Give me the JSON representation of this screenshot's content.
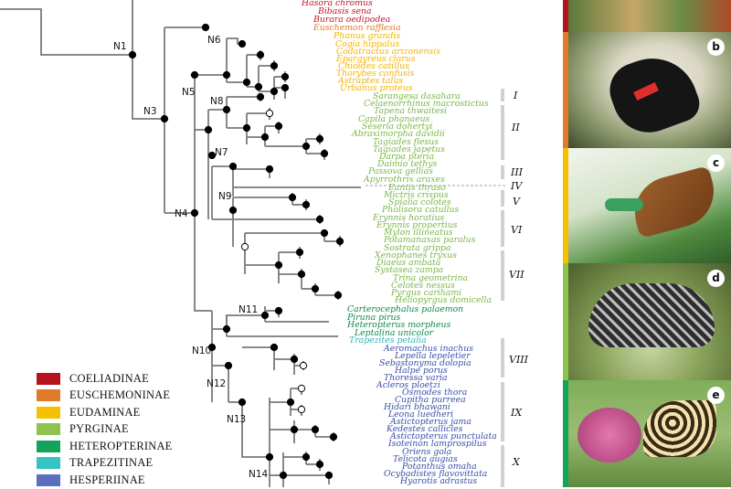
{
  "nodes": {
    "N1": "N1",
    "N3": "N3",
    "N4": "N4",
    "N5": "N5",
    "N6": "N6",
    "N7": "N7",
    "N8": "N8",
    "N9": "N9",
    "N10": "N10",
    "N11": "N11",
    "N12": "N12",
    "N13": "N13",
    "N14": "N14"
  },
  "taxa": [
    {
      "name": "Hasora chromus",
      "color": "#c0152a"
    },
    {
      "name": "Bibasis sena",
      "color": "#c0152a"
    },
    {
      "name": "Burara oedipodea",
      "color": "#c0152a"
    },
    {
      "name": "Euschemon rafflesia",
      "color": "#e07b2a"
    },
    {
      "name": "Phanus grandis",
      "color": "#f3b200"
    },
    {
      "name": "Cogia hippalus",
      "color": "#f3b200"
    },
    {
      "name": "Codatractus arizonensis",
      "color": "#f3b200"
    },
    {
      "name": "Epargyreus clarus",
      "color": "#f3b200"
    },
    {
      "name": "Chioides catillus",
      "color": "#f3b200"
    },
    {
      "name": "Thorybes confusis",
      "color": "#f3b200"
    },
    {
      "name": "Astraptes talus",
      "color": "#f3b200"
    },
    {
      "name": "Urbanus proteus",
      "color": "#f3b200"
    },
    {
      "name": "Sarangesa dasahara",
      "color": "#7ab648"
    },
    {
      "name": "Celaenorrhinus macrostictus",
      "color": "#7ab648"
    },
    {
      "name": "Tapena thwaitesi",
      "color": "#7ab648"
    },
    {
      "name": "Capila phanaeus",
      "color": "#7ab648"
    },
    {
      "name": "Seseria dohertyi",
      "color": "#7ab648"
    },
    {
      "name": "Abraximorpha davidii",
      "color": "#7ab648"
    },
    {
      "name": "Tagiades flesus",
      "color": "#7ab648"
    },
    {
      "name": "Tagiades japetus",
      "color": "#7ab648"
    },
    {
      "name": "Darpa pteria",
      "color": "#7ab648"
    },
    {
      "name": "Daimio tethys",
      "color": "#7ab648"
    },
    {
      "name": "Passova gellias",
      "color": "#7ab648"
    },
    {
      "name": "Apyrrothrix araxes",
      "color": "#7ab648"
    },
    {
      "name": "Eantis thraso",
      "color": "#7ab648"
    },
    {
      "name": "Mictris crispus",
      "color": "#7ab648"
    },
    {
      "name": "Spialia colotes",
      "color": "#7ab648"
    },
    {
      "name": "Pholisora catullus",
      "color": "#7ab648"
    },
    {
      "name": "Erynnis horatius",
      "color": "#7ab648"
    },
    {
      "name": "Erynnis propertius",
      "color": "#7ab648"
    },
    {
      "name": "Mylon illineatus",
      "color": "#7ab648"
    },
    {
      "name": "Potamanaxas paralus",
      "color": "#7ab648"
    },
    {
      "name": "Sostrata grippa",
      "color": "#7ab648"
    },
    {
      "name": "Xenophanes tryxus",
      "color": "#7ab648"
    },
    {
      "name": "Diaeus ambata",
      "color": "#7ab648"
    },
    {
      "name": "Systasea zampa",
      "color": "#7ab648"
    },
    {
      "name": "Trina geometrina",
      "color": "#7ab648"
    },
    {
      "name": "Celotes nessus",
      "color": "#7ab648"
    },
    {
      "name": "Pyrgus carihami",
      "color": "#7ab648"
    },
    {
      "name": "Heliopyrgus domicella",
      "color": "#7ab648"
    },
    {
      "name": "Carterocephalus palaemon",
      "color": "#0a8a4a"
    },
    {
      "name": "Piruna pirus",
      "color": "#0a8a4a"
    },
    {
      "name": "Heteropterus morpheus",
      "color": "#0a8a4a"
    },
    {
      "name": "Leptalina unicolor",
      "color": "#0a8a4a"
    },
    {
      "name": "Trapezites petalia",
      "color": "#2bb5b8"
    },
    {
      "name": "Aeromachus inachus",
      "color": "#3a4fa8"
    },
    {
      "name": "Lepella lepeletier",
      "color": "#3a4fa8"
    },
    {
      "name": "Sebastonyma dolopia",
      "color": "#3a4fa8"
    },
    {
      "name": "Halpe porus",
      "color": "#3a4fa8"
    },
    {
      "name": "Thoressa varia",
      "color": "#3a4fa8"
    },
    {
      "name": "Acleros ploetzi",
      "color": "#3a4fa8"
    },
    {
      "name": "Osmodes thora",
      "color": "#3a4fa8"
    },
    {
      "name": "Cupitha purreea",
      "color": "#3a4fa8"
    },
    {
      "name": "Hidari bhawani",
      "color": "#3a4fa8"
    },
    {
      "name": "Leona luedheri",
      "color": "#3a4fa8"
    },
    {
      "name": "Astictopterus jama",
      "color": "#3a4fa8"
    },
    {
      "name": "Kedestes callicles",
      "color": "#3a4fa8"
    },
    {
      "name": "Astictopterus punctulata",
      "color": "#3a4fa8"
    },
    {
      "name": "Isoteinon lamprospilus",
      "color": "#3a4fa8"
    },
    {
      "name": "Oriens gola",
      "color": "#3a4fa8"
    },
    {
      "name": "Telicota augias",
      "color": "#3a4fa8"
    },
    {
      "name": "Potanthus omaha",
      "color": "#3a4fa8"
    },
    {
      "name": "Ocybadistes flavovittata",
      "color": "#3a4fa8"
    },
    {
      "name": "Hyarotis adrastus",
      "color": "#3a4fa8"
    }
  ],
  "groups": [
    "I",
    "II",
    "III",
    "IV",
    "V",
    "VI",
    "VII",
    "VIII",
    "IX",
    "X"
  ],
  "legend": [
    {
      "label": "COELIADINAE",
      "color": "#b5141f"
    },
    {
      "label": "EUSCHEMONINAE",
      "color": "#e07b2a"
    },
    {
      "label": "EUDAMINAE",
      "color": "#f5c000"
    },
    {
      "label": "PYRGINAE",
      "color": "#8ec34e"
    },
    {
      "label": "HETEROPTERINAE",
      "color": "#13a35a"
    },
    {
      "label": "TRAPEZITINAE",
      "color": "#36c3c6"
    },
    {
      "label": "HESPERIINAE",
      "color": "#5b6fc0"
    }
  ],
  "photos": [
    {
      "letter": "b",
      "bar": "#e07b2a"
    },
    {
      "letter": "c",
      "bar": "#f5c000"
    },
    {
      "letter": "d",
      "bar": "#8ec34e"
    },
    {
      "letter": "e",
      "bar": "#13a35a"
    }
  ]
}
